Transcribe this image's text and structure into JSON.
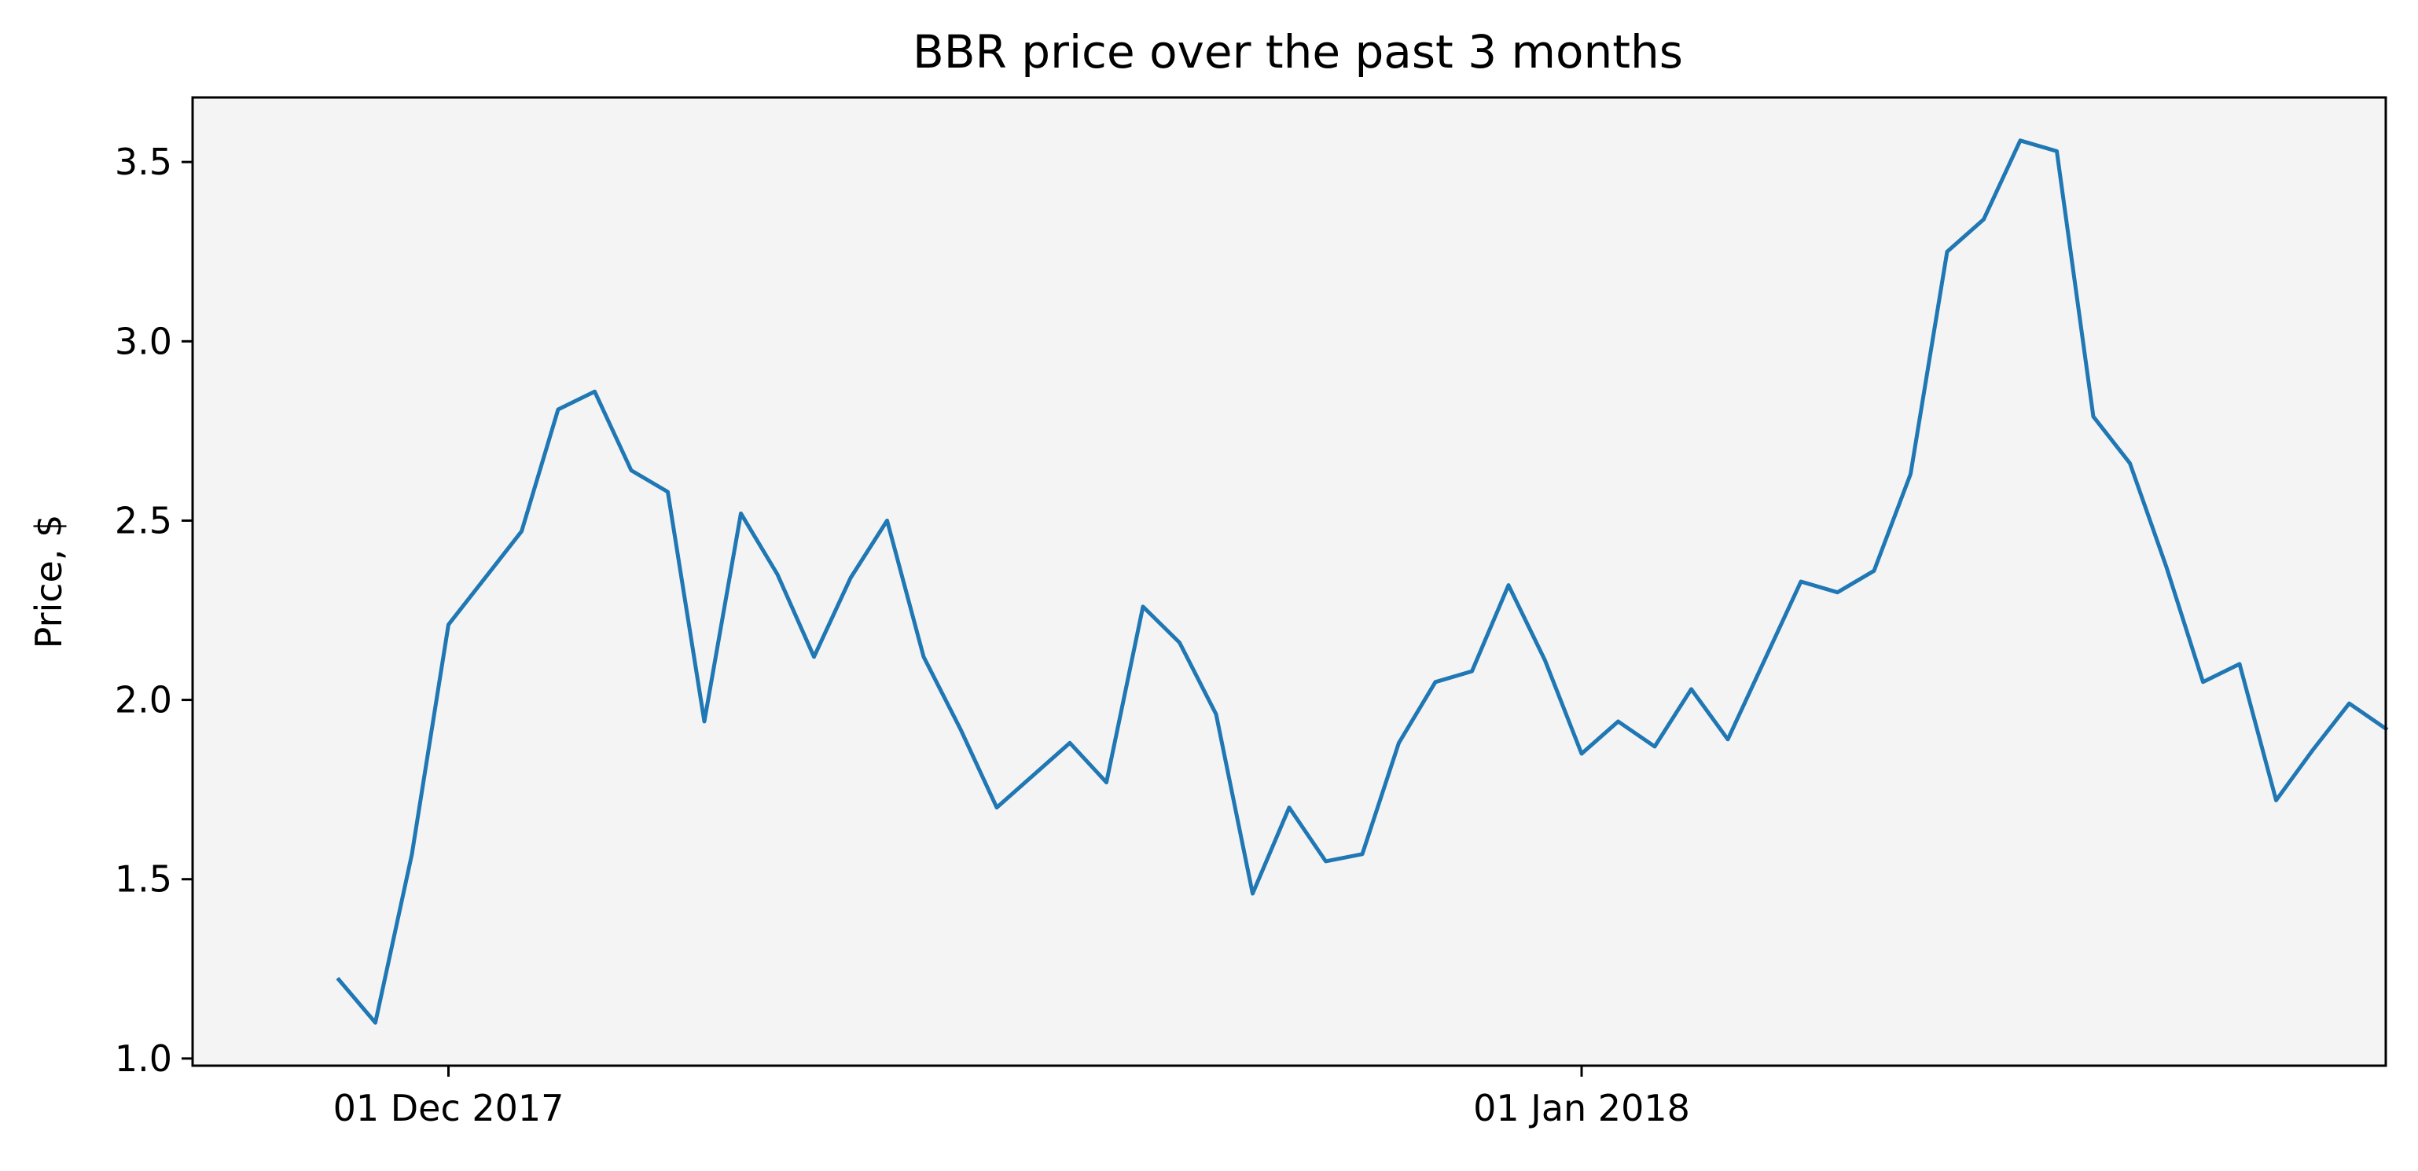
{
  "chart_data": {
    "type": "line",
    "title": "BBR price over the past 3 months",
    "xlabel": "",
    "ylabel": "Price, $",
    "ylim": [
      0.98,
      3.68
    ],
    "xlim": [
      "2017-11-24",
      "2018-01-23"
    ],
    "x_tick_labels": [
      {
        "date": "2017-12-01",
        "label": "01 Dec 2017"
      },
      {
        "date": "2018-01-01",
        "label": "01 Jan 2018"
      }
    ],
    "y_ticks": [
      1.0,
      1.5,
      2.0,
      2.5,
      3.0,
      3.5
    ],
    "y_tick_labels": [
      "1.0",
      "1.5",
      "2.0",
      "2.5",
      "3.0",
      "3.5"
    ],
    "grid": false,
    "background": "#f4f4f4",
    "series": [
      {
        "color": "#1f77b4",
        "x": [
          "2017-11-28",
          "2017-11-29",
          "2017-11-30",
          "2017-12-01",
          "2017-12-02",
          "2017-12-03",
          "2017-12-04",
          "2017-12-05",
          "2017-12-06",
          "2017-12-07",
          "2017-12-08",
          "2017-12-09",
          "2017-12-10",
          "2017-12-11",
          "2017-12-12",
          "2017-12-13",
          "2017-12-14",
          "2017-12-15",
          "2017-12-16",
          "2017-12-17",
          "2017-12-18",
          "2017-12-19",
          "2017-12-20",
          "2017-12-21",
          "2017-12-22",
          "2017-12-23",
          "2017-12-24",
          "2017-12-25",
          "2017-12-26",
          "2017-12-27",
          "2017-12-28",
          "2017-12-29",
          "2017-12-30",
          "2017-12-31",
          "2018-01-01",
          "2018-01-02",
          "2018-01-03",
          "2018-01-04",
          "2018-01-05",
          "2018-01-06",
          "2018-01-07",
          "2018-01-08",
          "2018-01-09",
          "2018-01-10",
          "2018-01-11",
          "2018-01-12",
          "2018-01-13",
          "2018-01-14",
          "2018-01-15",
          "2018-01-16",
          "2018-01-17",
          "2018-01-18",
          "2018-01-19",
          "2018-01-20",
          "2018-01-21",
          "2018-01-22",
          "2018-01-23"
        ],
        "y": [
          1.22,
          1.1,
          1.57,
          2.21,
          2.34,
          2.47,
          2.81,
          2.86,
          2.64,
          2.58,
          1.94,
          2.52,
          2.35,
          2.12,
          2.34,
          2.5,
          2.12,
          1.92,
          1.7,
          1.79,
          1.88,
          1.77,
          2.26,
          2.16,
          1.96,
          1.46,
          1.7,
          1.55,
          1.57,
          1.88,
          2.05,
          2.08,
          2.32,
          2.11,
          1.85,
          1.94,
          1.87,
          2.03,
          1.89,
          2.11,
          2.33,
          2.3,
          2.36,
          2.63,
          3.25,
          3.34,
          3.56,
          3.53,
          2.79,
          2.66,
          2.37,
          2.05,
          2.1,
          1.72,
          1.86,
          1.99,
          1.92
        ]
      }
    ]
  }
}
